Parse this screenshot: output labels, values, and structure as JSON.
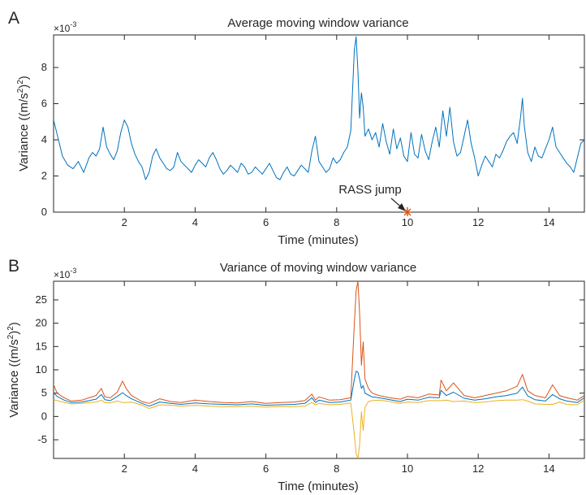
{
  "chart_data": [
    {
      "panel_label": "A",
      "type": "line",
      "title": "Average moving window variance",
      "xlabel": "Time (minutes)",
      "ylabel_base": "Variance ((m/s",
      "ylabel_sup_inner": "2",
      "ylabel_mid": ")",
      "ylabel_sup_outer": "2",
      "ylabel_end": ")",
      "exponent_base": "×10",
      "exponent_power": "-3",
      "xlim": [
        0,
        15
      ],
      "ylim": [
        0,
        0.0098
      ],
      "xticks": [
        2,
        4,
        6,
        8,
        10,
        12,
        14
      ],
      "yticks": [
        0,
        0.002,
        0.004,
        0.006,
        0.008
      ],
      "ytick_labels": [
        "0",
        "2",
        "4",
        "6",
        "8"
      ],
      "grid": false,
      "annotation": {
        "text": "RASS jump",
        "x": 10,
        "y": 0,
        "color": "#D95319"
      },
      "series": [
        {
          "color": "#0072BD",
          "x": [
            0,
            0.1,
            0.25,
            0.4,
            0.55,
            0.7,
            0.85,
            1.0,
            1.1,
            1.2,
            1.3,
            1.4,
            1.5,
            1.6,
            1.7,
            1.8,
            1.9,
            2.0,
            2.1,
            2.2,
            2.3,
            2.4,
            2.5,
            2.6,
            2.7,
            2.8,
            2.9,
            3.0,
            3.1,
            3.2,
            3.3,
            3.4,
            3.5,
            3.6,
            3.7,
            3.8,
            3.9,
            4.0,
            4.1,
            4.2,
            4.3,
            4.4,
            4.5,
            4.6,
            4.7,
            4.8,
            4.9,
            5.0,
            5.1,
            5.2,
            5.3,
            5.4,
            5.5,
            5.6,
            5.7,
            5.8,
            5.9,
            6.0,
            6.1,
            6.2,
            6.3,
            6.4,
            6.5,
            6.6,
            6.7,
            6.8,
            6.9,
            7.0,
            7.1,
            7.2,
            7.3,
            7.4,
            7.5,
            7.6,
            7.7,
            7.8,
            7.9,
            8.0,
            8.1,
            8.2,
            8.3,
            8.4,
            8.5,
            8.55,
            8.6,
            8.65,
            8.7,
            8.75,
            8.8,
            8.9,
            9.0,
            9.1,
            9.2,
            9.3,
            9.4,
            9.5,
            9.6,
            9.7,
            9.8,
            9.9,
            10.0,
            10.1,
            10.2,
            10.3,
            10.4,
            10.5,
            10.6,
            10.7,
            10.8,
            10.9,
            11.0,
            11.1,
            11.2,
            11.3,
            11.4,
            11.5,
            11.6,
            11.7,
            11.8,
            11.9,
            12.0,
            12.1,
            12.2,
            12.3,
            12.4,
            12.5,
            12.6,
            12.7,
            12.8,
            12.9,
            13.0,
            13.1,
            13.2,
            13.25,
            13.3,
            13.4,
            13.5,
            13.6,
            13.7,
            13.8,
            13.9,
            14.0,
            14.1,
            14.2,
            14.3,
            14.4,
            14.5,
            14.6,
            14.7,
            14.8,
            14.9,
            15.0
          ],
          "y": [
            0.0051,
            0.0043,
            0.0031,
            0.0026,
            0.0024,
            0.0028,
            0.0022,
            0.003,
            0.0033,
            0.0031,
            0.0035,
            0.0047,
            0.0036,
            0.0032,
            0.0029,
            0.0034,
            0.0044,
            0.0051,
            0.0047,
            0.0038,
            0.0032,
            0.0028,
            0.0025,
            0.0018,
            0.0022,
            0.0031,
            0.0035,
            0.003,
            0.0027,
            0.0024,
            0.0023,
            0.0025,
            0.0033,
            0.0028,
            0.0026,
            0.0024,
            0.0022,
            0.0026,
            0.0029,
            0.0027,
            0.0025,
            0.003,
            0.0033,
            0.0029,
            0.0024,
            0.0021,
            0.0023,
            0.0026,
            0.0024,
            0.0022,
            0.0027,
            0.0025,
            0.0021,
            0.0022,
            0.0025,
            0.0023,
            0.0021,
            0.0024,
            0.0027,
            0.0023,
            0.0019,
            0.0018,
            0.0022,
            0.0025,
            0.0021,
            0.002,
            0.0023,
            0.0026,
            0.0024,
            0.0022,
            0.0034,
            0.0042,
            0.0028,
            0.0025,
            0.0022,
            0.0024,
            0.003,
            0.0027,
            0.0029,
            0.0033,
            0.0036,
            0.0045,
            0.009,
            0.0097,
            0.0078,
            0.0052,
            0.0066,
            0.0058,
            0.0042,
            0.0046,
            0.004,
            0.0044,
            0.0036,
            0.0049,
            0.0039,
            0.0032,
            0.0046,
            0.0035,
            0.0041,
            0.0031,
            0.0028,
            0.0044,
            0.0032,
            0.003,
            0.0043,
            0.0034,
            0.0029,
            0.0039,
            0.0047,
            0.0036,
            0.0056,
            0.0042,
            0.0058,
            0.0039,
            0.0031,
            0.0033,
            0.0042,
            0.0051,
            0.0038,
            0.003,
            0.002,
            0.0026,
            0.0031,
            0.0028,
            0.0025,
            0.0032,
            0.003,
            0.0034,
            0.0039,
            0.0042,
            0.0044,
            0.0038,
            0.0053,
            0.0063,
            0.0048,
            0.0033,
            0.0028,
            0.0036,
            0.0031,
            0.003,
            0.0035,
            0.004,
            0.0047,
            0.0036,
            0.0033,
            0.003,
            0.0027,
            0.0025,
            0.0022,
            0.003,
            0.0038,
            0.004
          ]
        }
      ]
    },
    {
      "panel_label": "B",
      "type": "line",
      "title": "Variance of moving window variance",
      "xlabel": "Time (minutes)",
      "ylabel_base": "Variance ((m/s",
      "ylabel_sup_inner": "2",
      "ylabel_mid": ")",
      "ylabel_sup_outer": "2",
      "ylabel_end": ")",
      "exponent_base": "×10",
      "exponent_power": "-3",
      "xlim": [
        0,
        15
      ],
      "ylim": [
        -0.009,
        0.029
      ],
      "xticks": [
        2,
        4,
        6,
        8,
        10,
        12,
        14
      ],
      "yticks": [
        -0.005,
        0,
        0.005,
        0.01,
        0.015,
        0.02,
        0.025
      ],
      "ytick_labels": [
        "-5",
        "0",
        "5",
        "10",
        "15",
        "20",
        "25"
      ],
      "grid": false,
      "series": [
        {
          "color": "#D95319",
          "x": [
            0,
            0.1,
            0.3,
            0.5,
            0.8,
            1.0,
            1.2,
            1.35,
            1.45,
            1.6,
            1.8,
            1.95,
            2.05,
            2.2,
            2.5,
            2.7,
            3.0,
            3.3,
            3.6,
            4.0,
            4.4,
            4.8,
            5.2,
            5.6,
            6.0,
            6.4,
            6.8,
            7.1,
            7.3,
            7.4,
            7.5,
            7.8,
            8.1,
            8.4,
            8.5,
            8.55,
            8.6,
            8.65,
            8.7,
            8.75,
            8.8,
            8.9,
            9.0,
            9.2,
            9.5,
            9.8,
            10.0,
            10.3,
            10.6,
            10.9,
            10.95,
            11.1,
            11.3,
            11.6,
            11.9,
            12.2,
            12.5,
            12.8,
            13.1,
            13.25,
            13.4,
            13.6,
            13.9,
            14.1,
            14.3,
            14.5,
            14.8,
            15.0
          ],
          "y": [
            0.0068,
            0.005,
            0.004,
            0.0033,
            0.0035,
            0.004,
            0.0045,
            0.006,
            0.0042,
            0.004,
            0.0052,
            0.0076,
            0.006,
            0.0045,
            0.0032,
            0.0028,
            0.0038,
            0.0032,
            0.003,
            0.0035,
            0.0032,
            0.003,
            0.0029,
            0.0032,
            0.0028,
            0.003,
            0.0031,
            0.0034,
            0.0048,
            0.0035,
            0.0042,
            0.0035,
            0.0036,
            0.004,
            0.02,
            0.027,
            0.029,
            0.022,
            0.011,
            0.016,
            0.008,
            0.006,
            0.005,
            0.0045,
            0.004,
            0.0037,
            0.0043,
            0.004,
            0.0048,
            0.0046,
            0.0078,
            0.0055,
            0.0072,
            0.0045,
            0.004,
            0.0045,
            0.005,
            0.0055,
            0.0065,
            0.009,
            0.0055,
            0.0045,
            0.004,
            0.0068,
            0.0045,
            0.004,
            0.0035,
            0.0045
          ]
        },
        {
          "color": "#0072BD",
          "x": [
            0,
            0.1,
            0.3,
            0.5,
            0.8,
            1.0,
            1.2,
            1.35,
            1.45,
            1.6,
            1.8,
            1.95,
            2.05,
            2.2,
            2.5,
            2.7,
            3.0,
            3.3,
            3.6,
            4.0,
            4.4,
            4.8,
            5.2,
            5.6,
            6.0,
            6.4,
            6.8,
            7.1,
            7.3,
            7.4,
            7.5,
            7.8,
            8.1,
            8.4,
            8.5,
            8.55,
            8.6,
            8.65,
            8.7,
            8.75,
            8.8,
            8.9,
            9.0,
            9.2,
            9.5,
            9.8,
            10.0,
            10.3,
            10.6,
            10.9,
            10.95,
            11.1,
            11.3,
            11.6,
            11.9,
            12.2,
            12.5,
            12.8,
            13.1,
            13.25,
            13.4,
            13.6,
            13.9,
            14.1,
            14.3,
            14.5,
            14.8,
            15.0
          ],
          "y": [
            0.0051,
            0.0043,
            0.0035,
            0.003,
            0.0031,
            0.0034,
            0.0037,
            0.0047,
            0.0036,
            0.0034,
            0.0043,
            0.0051,
            0.0045,
            0.0038,
            0.0028,
            0.0022,
            0.0031,
            0.0028,
            0.0026,
            0.0029,
            0.0027,
            0.0026,
            0.0025,
            0.0027,
            0.0024,
            0.0025,
            0.0026,
            0.0028,
            0.004,
            0.003,
            0.0035,
            0.003,
            0.0031,
            0.0035,
            0.008,
            0.0097,
            0.0095,
            0.008,
            0.006,
            0.0066,
            0.005,
            0.0046,
            0.0042,
            0.004,
            0.0036,
            0.0032,
            0.0037,
            0.0035,
            0.0041,
            0.004,
            0.0056,
            0.0045,
            0.0052,
            0.0039,
            0.0035,
            0.0038,
            0.0042,
            0.0045,
            0.005,
            0.0063,
            0.0044,
            0.0036,
            0.0033,
            0.0047,
            0.0038,
            0.0033,
            0.003,
            0.004
          ]
        },
        {
          "color": "#EDB120",
          "x": [
            0,
            0.1,
            0.3,
            0.5,
            0.8,
            1.0,
            1.2,
            1.35,
            1.45,
            1.6,
            1.8,
            1.95,
            2.05,
            2.2,
            2.5,
            2.7,
            3.0,
            3.3,
            3.6,
            4.0,
            4.4,
            4.8,
            5.2,
            5.6,
            6.0,
            6.4,
            6.8,
            7.1,
            7.3,
            7.4,
            7.5,
            7.8,
            8.1,
            8.4,
            8.5,
            8.55,
            8.6,
            8.65,
            8.7,
            8.75,
            8.8,
            8.9,
            9.0,
            9.2,
            9.5,
            9.8,
            10.0,
            10.3,
            10.6,
            10.9,
            10.95,
            11.1,
            11.3,
            11.6,
            11.9,
            12.2,
            12.5,
            12.8,
            13.1,
            13.25,
            13.4,
            13.6,
            13.9,
            14.1,
            14.3,
            14.5,
            14.8,
            15.0
          ],
          "y": [
            0.0036,
            0.0034,
            0.003,
            0.0027,
            0.0028,
            0.003,
            0.0031,
            0.0035,
            0.003,
            0.0029,
            0.0033,
            0.003,
            0.003,
            0.0031,
            0.0024,
            0.0017,
            0.0025,
            0.0024,
            0.0022,
            0.0024,
            0.0022,
            0.0021,
            0.0021,
            0.0022,
            0.002,
            0.0021,
            0.0021,
            0.0022,
            0.003,
            0.0025,
            0.0028,
            0.0025,
            0.0026,
            0.0029,
            -0.004,
            -0.008,
            -0.009,
            -0.006,
            0.001,
            -0.003,
            0.002,
            0.0032,
            0.0034,
            0.0035,
            0.0032,
            0.0028,
            0.0031,
            0.003,
            0.0034,
            0.0034,
            0.0034,
            0.0035,
            0.0032,
            0.0033,
            0.003,
            0.0031,
            0.0034,
            0.0035,
            0.0035,
            0.0036,
            0.0033,
            0.0027,
            0.0026,
            0.0026,
            0.0031,
            0.0026,
            0.0025,
            0.0035
          ]
        }
      ]
    }
  ]
}
